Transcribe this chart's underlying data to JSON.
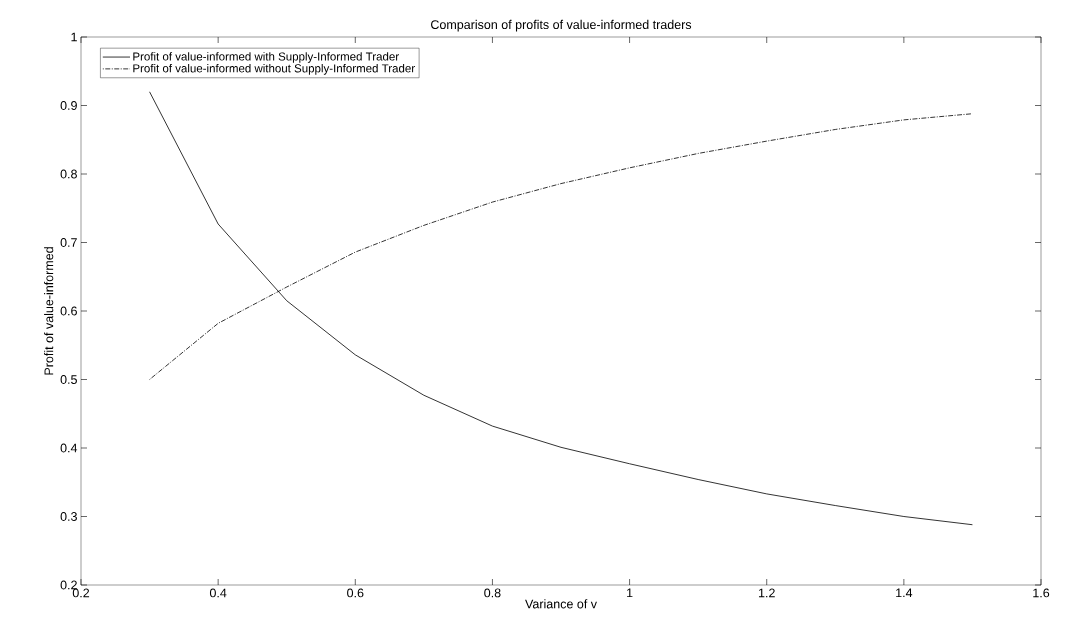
{
  "chart_data": {
    "type": "line",
    "title": "Comparison of profits of value-informed traders",
    "xlabel": "Variance of v",
    "ylabel": "Profit of value-informed",
    "x": [
      0.3,
      0.4,
      0.5,
      0.6,
      0.7,
      0.8,
      0.9,
      1.0,
      1.1,
      1.2,
      1.3,
      1.4,
      1.5
    ],
    "series": [
      {
        "name": "Profit of value-informed with Supply-Informed Trader",
        "color": "#000000",
        "line_style": "solid",
        "values": [
          0.92,
          0.727,
          0.615,
          0.536,
          0.477,
          0.432,
          0.401,
          0.377,
          0.354,
          0.333,
          0.316,
          0.3,
          0.288
        ]
      },
      {
        "name": "Profit of value-informed without Supply-Informed Trader",
        "color": "#000000",
        "line_style": "dashdot",
        "values": [
          0.5,
          0.582,
          0.635,
          0.686,
          0.725,
          0.759,
          0.786,
          0.809,
          0.83,
          0.848,
          0.865,
          0.879,
          0.888
        ]
      }
    ],
    "xlim": [
      0.2,
      1.6
    ],
    "ylim": [
      0.2,
      1
    ],
    "xticks": [
      0.2,
      0.4,
      0.6,
      0.8,
      1,
      1.2,
      1.4,
      1.6
    ],
    "yticks": [
      0.2,
      0.3,
      0.4,
      0.5,
      0.6,
      0.7,
      0.8,
      0.9,
      1
    ],
    "grid": false,
    "legend": "top left",
    "marker": "none"
  }
}
